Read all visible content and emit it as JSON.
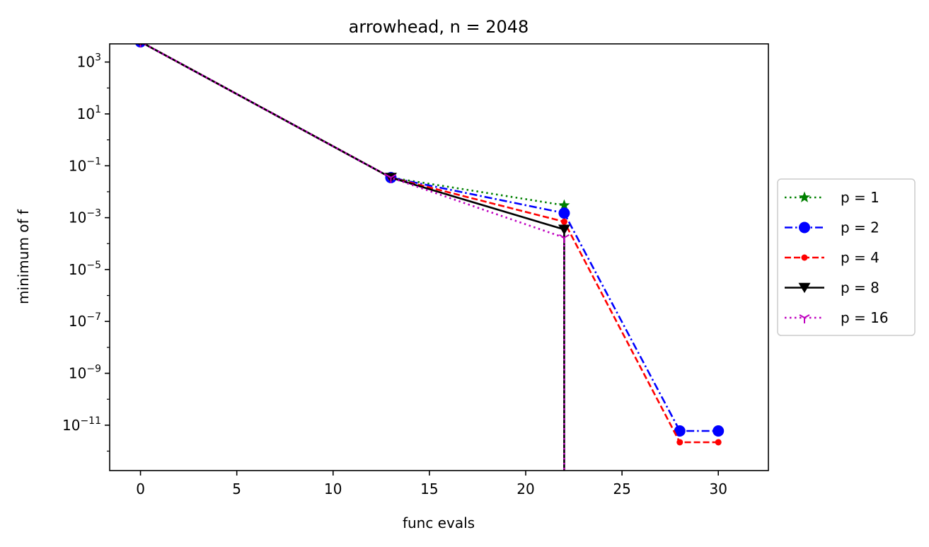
{
  "chart_data": {
    "type": "line",
    "title": "arrowhead, n = 2048",
    "xlabel": "func evals",
    "ylabel": "minimum of f",
    "xscale": "linear",
    "yscale": "log",
    "xlim": [
      -1.6,
      32.6
    ],
    "ylim": [
      -12.75,
      3.7
    ],
    "xticks": [
      0,
      5,
      10,
      15,
      20,
      25,
      30
    ],
    "xtick_labels": [
      "0",
      "5",
      "10",
      "15",
      "20",
      "25",
      "30"
    ],
    "yticks": [
      3,
      1,
      -1,
      -3,
      -5,
      -7,
      -9,
      -11
    ],
    "ytick_base": "10",
    "ytick_exponents": [
      "3",
      "1",
      "−1",
      "−3",
      "−5",
      "−7",
      "−9",
      "−11"
    ],
    "grid": false,
    "legend_placement": "outside-right",
    "series": [
      {
        "name": "p = 1",
        "color": "#008000",
        "linestyle": "dotted",
        "marker": "star",
        "points": [
          [
            0,
            6000
          ],
          [
            13,
            0.035
          ],
          [
            22,
            0.003
          ],
          [
            22,
            1e-13
          ]
        ]
      },
      {
        "name": "p = 2",
        "color": "#0000ff",
        "linestyle": "dashdot",
        "marker": "circle",
        "points": [
          [
            0,
            6000
          ],
          [
            13,
            0.035
          ],
          [
            22,
            0.0015
          ],
          [
            28,
            6e-12
          ],
          [
            30,
            6e-12
          ]
        ]
      },
      {
        "name": "p = 4",
        "color": "#ff0000",
        "linestyle": "dashed",
        "marker": "point",
        "points": [
          [
            0,
            6000
          ],
          [
            13,
            0.035
          ],
          [
            22,
            0.0007
          ],
          [
            28,
            2.2e-12
          ],
          [
            30,
            2.2e-12
          ]
        ]
      },
      {
        "name": "p = 8",
        "color": "#000000",
        "linestyle": "solid",
        "marker": "triangle-down",
        "points": [
          [
            0,
            6000
          ],
          [
            13,
            0.035
          ],
          [
            22,
            0.00035
          ],
          [
            22,
            1e-13
          ]
        ]
      },
      {
        "name": "p = 16",
        "color": "#bf00bf",
        "linestyle": "dotted",
        "marker": "tri-down",
        "points": [
          [
            0,
            6000
          ],
          [
            13,
            0.035
          ],
          [
            22,
            0.00017
          ],
          [
            22,
            1e-13
          ]
        ]
      }
    ]
  }
}
